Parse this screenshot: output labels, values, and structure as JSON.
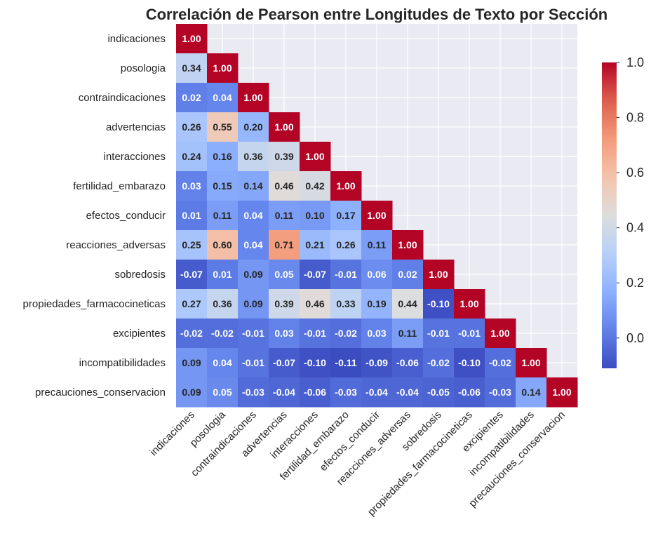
{
  "chart_data": {
    "type": "heatmap",
    "title": "Correlación de Pearson entre Longitudes de Texto por Sección",
    "labels": [
      "indicaciones",
      "posologia",
      "contraindicaciones",
      "advertencias",
      "interacciones",
      "fertilidad_embarazo",
      "efectos_conducir",
      "reacciones_adversas",
      "sobredosis",
      "propiedades_farmacocineticas",
      "excipientes",
      "incompatibilidades",
      "precauciones_conservacion"
    ],
    "matrix": [
      [
        1.0
      ],
      [
        0.34,
        1.0
      ],
      [
        0.02,
        0.04,
        1.0
      ],
      [
        0.26,
        0.55,
        0.2,
        1.0
      ],
      [
        0.24,
        0.16,
        0.36,
        0.39,
        1.0
      ],
      [
        0.03,
        0.15,
        0.14,
        0.46,
        0.42,
        1.0
      ],
      [
        0.01,
        0.11,
        0.04,
        0.11,
        0.1,
        0.17,
        1.0
      ],
      [
        0.25,
        0.6,
        0.04,
        0.71,
        0.21,
        0.26,
        0.11,
        1.0
      ],
      [
        -0.07,
        0.01,
        0.09,
        0.05,
        -0.07,
        -0.01,
        0.06,
        0.02,
        1.0
      ],
      [
        0.27,
        0.36,
        0.09,
        0.39,
        0.46,
        0.33,
        0.19,
        0.44,
        -0.1,
        1.0
      ],
      [
        -0.02,
        -0.02,
        -0.01,
        0.03,
        -0.01,
        -0.02,
        0.03,
        0.11,
        -0.01,
        -0.01,
        1.0
      ],
      [
        0.09,
        0.04,
        -0.01,
        -0.07,
        -0.1,
        -0.11,
        -0.09,
        -0.06,
        -0.02,
        -0.1,
        -0.02,
        1.0
      ],
      [
        0.09,
        0.05,
        -0.03,
        -0.04,
        -0.06,
        -0.03,
        -0.04,
        -0.04,
        -0.05,
        -0.06,
        -0.03,
        0.14,
        1.0
      ]
    ],
    "mask": "upper-triangle",
    "colormap": "coolwarm",
    "vmin": -0.11,
    "vmax": 1.0,
    "colorbar_ticks": [
      "0.0",
      "0.2",
      "0.4",
      "0.6",
      "0.8",
      "1.0"
    ],
    "colorbar_tick_values": [
      0.0,
      0.2,
      0.4,
      0.6,
      0.8,
      1.0
    ],
    "background_color": "#eaeaf2",
    "grid": true
  }
}
